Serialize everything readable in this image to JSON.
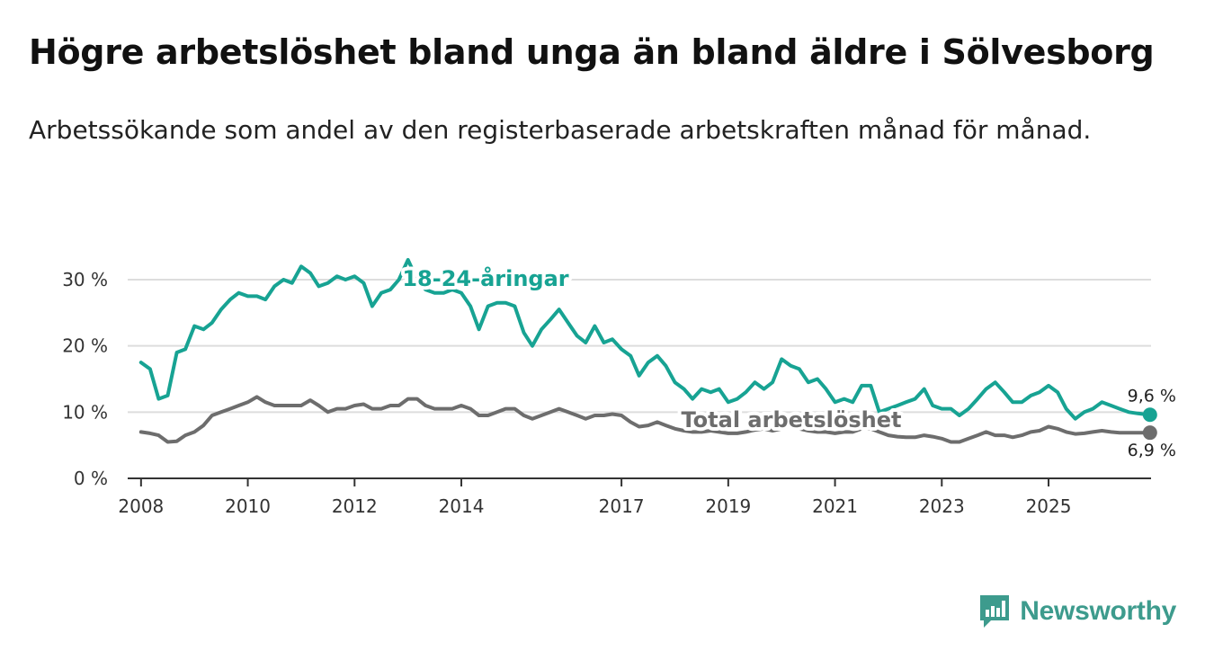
{
  "title": "Högre arbetslöshet bland unga än bland äldre i Sölvesborg",
  "subtitle": "Arbetssökande som andel av den registerbaserade arbetskraften månad för månad.",
  "colors": {
    "youth": "#17a393",
    "total": "#6d6d6d",
    "grid": "#dddddd",
    "axis": "#333333",
    "logo": "#3d9b8d"
  },
  "logo": {
    "text": "Newsworthy",
    "icon": "newsworthy-bar-chart-icon"
  },
  "chart_data": {
    "type": "line",
    "title": "Högre arbetslöshet bland unga än bland äldre i Sölvesborg",
    "xlabel": "",
    "ylabel": "",
    "xlim": [
      2007.75,
      2026.92
    ],
    "ylim": [
      0,
      30
    ],
    "y_ticks": [
      0,
      10,
      20,
      30
    ],
    "y_tick_labels": [
      "0 %",
      "10 %",
      "20 %",
      "30 %"
    ],
    "x_ticks": [
      2008,
      2010,
      2012,
      2014,
      2017,
      2019,
      2021,
      2023,
      2025
    ],
    "x_tick_labels": [
      "2008",
      "2010",
      "2012",
      "2014",
      "2017",
      "2019",
      "2021",
      "2023",
      "2025"
    ],
    "grid": true,
    "series": [
      {
        "name": "18-24-åringar",
        "label": "18-24-åringar",
        "end_label": "9,6 %",
        "color": "#17a393",
        "x": [
          2008.0,
          2008.17,
          2008.33,
          2008.5,
          2008.67,
          2008.83,
          2009.0,
          2009.17,
          2009.33,
          2009.5,
          2009.67,
          2009.83,
          2010.0,
          2010.17,
          2010.33,
          2010.5,
          2010.67,
          2010.83,
          2011.0,
          2011.17,
          2011.33,
          2011.5,
          2011.67,
          2011.83,
          2012.0,
          2012.17,
          2012.33,
          2012.5,
          2012.67,
          2012.83,
          2013.0,
          2013.17,
          2013.33,
          2013.5,
          2013.67,
          2013.83,
          2014.0,
          2014.17,
          2014.33,
          2014.5,
          2014.67,
          2014.83,
          2015.0,
          2015.17,
          2015.33,
          2015.5,
          2015.67,
          2015.83,
          2016.0,
          2016.17,
          2016.33,
          2016.5,
          2016.67,
          2016.83,
          2017.0,
          2017.17,
          2017.33,
          2017.5,
          2017.67,
          2017.83,
          2018.0,
          2018.17,
          2018.33,
          2018.5,
          2018.67,
          2018.83,
          2019.0,
          2019.17,
          2019.33,
          2019.5,
          2019.67,
          2019.83,
          2020.0,
          2020.17,
          2020.33,
          2020.5,
          2020.67,
          2020.83,
          2021.0,
          2021.17,
          2021.33,
          2021.5,
          2021.67,
          2021.83,
          2022.0,
          2022.17,
          2022.33,
          2022.5,
          2022.67,
          2022.83,
          2023.0,
          2023.17,
          2023.33,
          2023.5,
          2023.67,
          2023.83,
          2024.0,
          2024.17,
          2024.33,
          2024.5,
          2024.67,
          2024.83,
          2025.0,
          2025.17,
          2025.33,
          2025.5,
          2025.67,
          2025.83,
          2026.0,
          2026.17,
          2026.33,
          2026.5,
          2026.67,
          2026.9
        ],
        "values": [
          17.5,
          16.5,
          12.0,
          12.5,
          19.0,
          19.5,
          23.0,
          22.5,
          23.5,
          25.5,
          27.0,
          28.0,
          27.5,
          27.5,
          27.0,
          29.0,
          30.0,
          29.5,
          32.0,
          31.0,
          29.0,
          29.5,
          30.5,
          30.0,
          30.5,
          29.5,
          26.0,
          28.0,
          28.5,
          30.0,
          33.0,
          30.0,
          28.5,
          28.0,
          28.0,
          28.5,
          28.0,
          26.0,
          22.5,
          26.0,
          26.5,
          26.5,
          26.0,
          22.0,
          20.0,
          22.5,
          24.0,
          25.5,
          23.5,
          21.5,
          20.5,
          23.0,
          20.5,
          21.0,
          19.5,
          18.5,
          15.5,
          17.5,
          18.5,
          17.0,
          14.5,
          13.5,
          12.0,
          13.5,
          13.0,
          13.5,
          11.5,
          12.0,
          13.0,
          14.5,
          13.5,
          14.5,
          18.0,
          17.0,
          16.5,
          14.5,
          15.0,
          13.5,
          11.5,
          12.0,
          11.5,
          14.0,
          14.0,
          10.0,
          10.5,
          11.0,
          11.5,
          12.0,
          13.5,
          11.0,
          10.5,
          10.5,
          9.5,
          10.5,
          12.0,
          13.5,
          14.5,
          13.0,
          11.5,
          11.5,
          12.5,
          13.0,
          14.0,
          13.0,
          10.5,
          9.0,
          10.0,
          10.5,
          11.5,
          11.0,
          10.5,
          10.0,
          9.8,
          9.6
        ]
      },
      {
        "name": "Total arbetslöshet",
        "label": "Total arbetslöshet",
        "end_label": "6,9 %",
        "color": "#6d6d6d",
        "x": [
          2008.0,
          2008.17,
          2008.33,
          2008.5,
          2008.67,
          2008.83,
          2009.0,
          2009.17,
          2009.33,
          2009.5,
          2009.67,
          2009.83,
          2010.0,
          2010.17,
          2010.33,
          2010.5,
          2010.67,
          2010.83,
          2011.0,
          2011.17,
          2011.33,
          2011.5,
          2011.67,
          2011.83,
          2012.0,
          2012.17,
          2012.33,
          2012.5,
          2012.67,
          2012.83,
          2013.0,
          2013.17,
          2013.33,
          2013.5,
          2013.67,
          2013.83,
          2014.0,
          2014.17,
          2014.33,
          2014.5,
          2014.67,
          2014.83,
          2015.0,
          2015.17,
          2015.33,
          2015.5,
          2015.67,
          2015.83,
          2016.0,
          2016.17,
          2016.33,
          2016.5,
          2016.67,
          2016.83,
          2017.0,
          2017.17,
          2017.33,
          2017.5,
          2017.67,
          2017.83,
          2018.0,
          2018.17,
          2018.33,
          2018.5,
          2018.67,
          2018.83,
          2019.0,
          2019.17,
          2019.33,
          2019.5,
          2019.67,
          2019.83,
          2020.0,
          2020.17,
          2020.33,
          2020.5,
          2020.67,
          2020.83,
          2021.0,
          2021.17,
          2021.33,
          2021.5,
          2021.67,
          2021.83,
          2022.0,
          2022.17,
          2022.33,
          2022.5,
          2022.67,
          2022.83,
          2023.0,
          2023.17,
          2023.33,
          2023.5,
          2023.67,
          2023.83,
          2024.0,
          2024.17,
          2024.33,
          2024.5,
          2024.67,
          2024.83,
          2025.0,
          2025.17,
          2025.33,
          2025.5,
          2025.67,
          2025.83,
          2026.0,
          2026.17,
          2026.33,
          2026.5,
          2026.67,
          2026.9
        ],
        "values": [
          7.0,
          6.8,
          6.5,
          5.5,
          5.6,
          6.5,
          7.0,
          8.0,
          9.5,
          10.0,
          10.5,
          11.0,
          11.5,
          12.3,
          11.5,
          11.0,
          11.0,
          11.0,
          11.0,
          11.8,
          11.0,
          10.0,
          10.5,
          10.5,
          11.0,
          11.2,
          10.5,
          10.5,
          11.0,
          11.0,
          12.0,
          12.0,
          11.0,
          10.5,
          10.5,
          10.5,
          11.0,
          10.5,
          9.5,
          9.5,
          10.0,
          10.5,
          10.5,
          9.5,
          9.0,
          9.5,
          10.0,
          10.5,
          10.0,
          9.5,
          9.0,
          9.5,
          9.5,
          9.7,
          9.5,
          8.5,
          7.8,
          8.0,
          8.5,
          8.0,
          7.5,
          7.2,
          7.0,
          7.0,
          7.2,
          7.0,
          6.8,
          6.8,
          7.0,
          7.3,
          7.5,
          7.2,
          7.5,
          8.0,
          7.5,
          7.2,
          7.0,
          7.0,
          6.8,
          7.0,
          7.0,
          7.5,
          7.5,
          7.0,
          6.5,
          6.3,
          6.2,
          6.2,
          6.5,
          6.3,
          6.0,
          5.5,
          5.5,
          6.0,
          6.5,
          7.0,
          6.5,
          6.5,
          6.2,
          6.5,
          7.0,
          7.2,
          7.8,
          7.5,
          7.0,
          6.7,
          6.8,
          7.0,
          7.2,
          7.0,
          6.9,
          6.9,
          6.9,
          6.9
        ]
      }
    ]
  }
}
